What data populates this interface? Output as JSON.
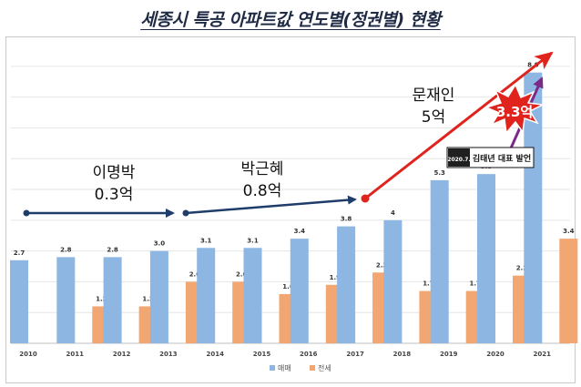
{
  "title": "세종시 특공 아파트값 연도별(정권별) 현황",
  "chart_data": {
    "type": "bar",
    "categories": [
      "2010",
      "2011",
      "2012",
      "2013",
      "2014",
      "2015",
      "2016",
      "2017",
      "2018",
      "2019",
      "2020",
      "2021"
    ],
    "series": [
      {
        "name": "매매",
        "color": "#8db6e2",
        "values": [
          2.7,
          2.8,
          2.8,
          3.0,
          3.1,
          3.1,
          3.4,
          3.8,
          4,
          5.3,
          5.5,
          8.8
        ],
        "labels": [
          "2.7",
          "2.8",
          "2.8",
          "3.0",
          "3.1",
          "3.1",
          "3.4",
          "3.8",
          "4",
          "5.3",
          "5.5",
          "8.8"
        ]
      },
      {
        "name": "전세",
        "color": "#f2a672",
        "values": [
          null,
          1.2,
          1.2,
          2.0,
          2.0,
          1.6,
          1.9,
          2.3,
          1.7,
          1.7,
          2.2,
          3.4
        ],
        "labels": [
          "",
          "1.2",
          "1.2",
          "2.0",
          "2.0",
          "1.6",
          "1.9",
          "2.3",
          "1.7",
          "1.7",
          "2.2",
          "3.4"
        ]
      }
    ],
    "ylim": [
      0,
      9.5
    ],
    "grid": true,
    "legend": "bottom-center"
  },
  "annotations": {
    "lee": {
      "line1": "이명박",
      "line2": "0.3억",
      "color": "#1f3d6b"
    },
    "park": {
      "line1": "박근혜",
      "line2": "0.8억",
      "color": "#1f3d6b"
    },
    "moon": {
      "line1": "문재인",
      "line2": "5억",
      "color": "#e0231d"
    },
    "burst": {
      "text": "3.3억",
      "color": "#e0231d"
    },
    "callout": {
      "date": "2020.7.",
      "text": "김태년 대표 발언"
    },
    "purple_arrow_color": "#7b2a8a"
  }
}
